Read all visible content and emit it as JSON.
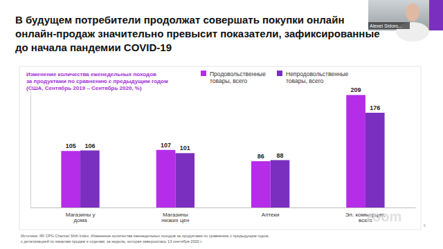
{
  "chart_data": {
    "type": "bar",
    "title": [
      "В будущем потребители продолжат совершать покупки онлайн",
      "онлайн-продаж значительно превысит показатели, зафиксированные",
      "до начала пандемии COVID-19"
    ],
    "subtitle": [
      "Изменение количества еженедельных походов",
      "за продуктами по сравнению с предыдущим годом",
      "(США, Сентябрь 2019 – Сентябрь 2020, %)"
    ],
    "categories": [
      "Магазины у дома",
      "Магазины низких цен",
      "Аптеки",
      "Эл. коммерция, всего"
    ],
    "series": [
      {
        "name": "Продовольственные товары, всего",
        "color": "#b52de8",
        "values": [
          105,
          107,
          86,
          209
        ]
      },
      {
        "name": "Непродовольственные товары, всего",
        "color": "#7b2fbf",
        "values": [
          106,
          101,
          88,
          176
        ]
      }
    ],
    "ylim": [
      0,
      230
    ],
    "yticks": [],
    "data_labels": true,
    "tick_labels": "x",
    "legend": "top",
    "source": [
      "Источник: IRI CPG Channel Shift Index. Изменение количества еженедельных походов за продуктами по сравнению с предыдущим годом,",
      "с детализацией по каналам продаж и отделам, за неделю, которая завершилась 13 сентября 2020 г."
    ],
    "page_number": "6"
  },
  "overlay": {
    "participant": "Alexei Sidoro...",
    "watermark": "zoom"
  }
}
